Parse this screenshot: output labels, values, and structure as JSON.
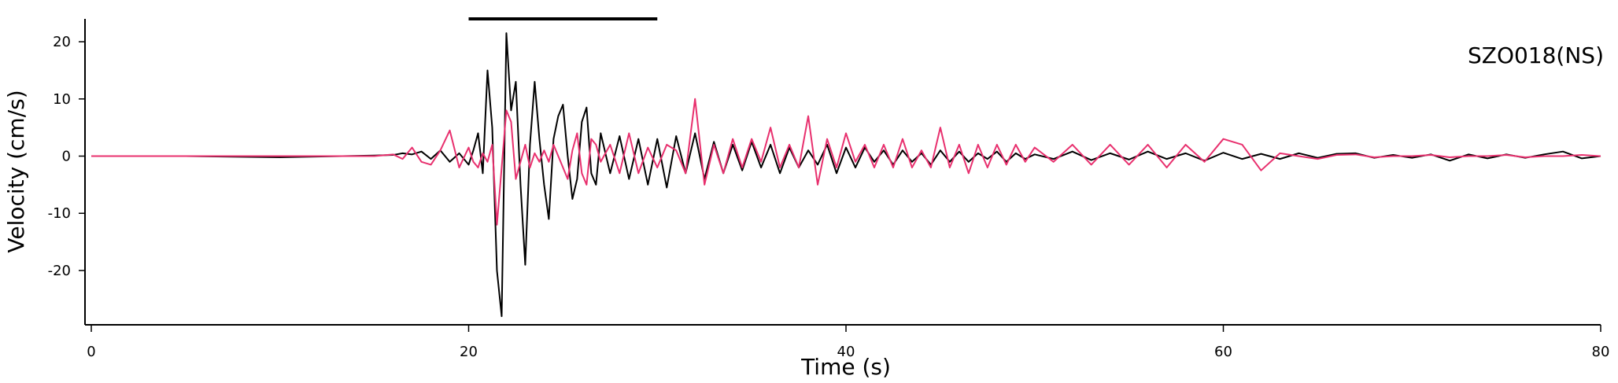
{
  "chart_data": {
    "type": "line",
    "xlabel": "Time (s)",
    "ylabel": "Velocity (cm/s)",
    "annotation": "SZO018(NS)",
    "highlight_window": [
      20,
      30
    ],
    "xlim": [
      0,
      80
    ],
    "xticks": [
      0,
      20,
      40,
      60,
      80
    ],
    "ylim": [
      -29.5,
      24
    ],
    "yticks": [
      -20,
      -10,
      0,
      10,
      20
    ],
    "x": [
      0,
      5,
      10,
      15,
      16,
      16.5,
      17,
      17.5,
      18,
      18.5,
      19,
      19.5,
      20,
      20.25,
      20.5,
      20.75,
      21,
      21.25,
      21.5,
      21.75,
      22,
      22.25,
      22.5,
      22.75,
      23,
      23.25,
      23.5,
      23.75,
      24,
      24.25,
      24.5,
      24.75,
      25,
      25.25,
      25.5,
      25.75,
      26,
      26.25,
      26.5,
      26.75,
      27,
      27.5,
      28,
      28.5,
      29,
      29.5,
      30,
      30.5,
      31,
      31.5,
      32,
      32.5,
      33,
      33.5,
      34,
      34.5,
      35,
      35.5,
      36,
      36.5,
      37,
      37.5,
      38,
      38.5,
      39,
      39.5,
      40,
      40.5,
      41,
      41.5,
      42,
      42.5,
      43,
      43.5,
      44,
      44.5,
      45,
      45.5,
      46,
      46.5,
      47,
      47.5,
      48,
      48.5,
      49,
      49.5,
      50,
      51,
      52,
      53,
      54,
      55,
      56,
      57,
      58,
      59,
      60,
      61,
      62,
      63,
      64,
      65,
      66,
      67,
      68,
      69,
      70,
      71,
      72,
      73,
      74,
      75,
      76,
      77,
      78,
      79,
      80
    ],
    "series": [
      {
        "color": "#000000",
        "values": [
          0,
          0,
          -0.2,
          0.1,
          0.2,
          0.5,
          0.3,
          0.8,
          -0.5,
          1,
          -1,
          0.5,
          -1.5,
          1,
          4,
          -3,
          15,
          5,
          -20,
          -28,
          21.5,
          8,
          13,
          -5,
          -19,
          2,
          13,
          3,
          -5,
          -11,
          3,
          7,
          9,
          0,
          -7.5,
          -4,
          6,
          8.5,
          -3,
          -5,
          4,
          -3,
          3.5,
          -4,
          3,
          -5,
          3,
          -5.5,
          3.5,
          -3,
          4,
          -4,
          2.5,
          -3,
          2,
          -2.5,
          2.5,
          -2,
          2,
          -3,
          1.5,
          -2,
          1,
          -1.5,
          2,
          -3,
          1.5,
          -2,
          1.5,
          -1,
          1,
          -1.5,
          1,
          -1,
          0.5,
          -1.5,
          1,
          -1,
          0.8,
          -1,
          0.5,
          -0.5,
          0.8,
          -1,
          0.5,
          -0.5,
          0.3,
          -0.5,
          0.8,
          -0.7,
          0.5,
          -0.6,
          0.8,
          -0.5,
          0.5,
          -0.8,
          0.6,
          -0.5,
          0.4,
          -0.5,
          0.5,
          -0.3,
          0.4,
          0.5,
          -0.3,
          0.2,
          -0.3,
          0.3,
          -0.8,
          0.3,
          -0.4,
          0.3,
          -0.3,
          0.3,
          0.8,
          -0.4,
          0
        ]
      },
      {
        "color": "#e8306e",
        "values": [
          0,
          0,
          0,
          0,
          0.3,
          -0.5,
          1.5,
          -1,
          -1.5,
          1,
          4.5,
          -2,
          1.5,
          -1,
          -2,
          0.5,
          -1,
          2,
          -12,
          -2,
          8,
          6,
          -4,
          -1,
          2,
          -2,
          0.5,
          -1,
          1,
          -1,
          2,
          0,
          -2,
          -4,
          1,
          4,
          -3,
          -5,
          3,
          2,
          -1,
          2,
          -3,
          4,
          -3,
          1.5,
          -2,
          2,
          1,
          -3,
          10,
          -5,
          2,
          -3,
          3,
          -2,
          3,
          -1,
          5,
          -2,
          2,
          -2,
          7,
          -5,
          3,
          -2,
          4,
          -1,
          2,
          -2,
          2,
          -2,
          3,
          -2,
          1,
          -2,
          5,
          -2,
          2,
          -3,
          2,
          -2,
          2,
          -1.5,
          2,
          -1,
          1.5,
          -1,
          2,
          -1.5,
          2,
          -1.5,
          2,
          -2,
          2,
          -1,
          3,
          2,
          -2.5,
          0.5,
          0,
          -0.5,
          0.2,
          0.3,
          -0.2,
          0,
          0,
          0.2,
          -0.2,
          0,
          0,
          0.2,
          -0.2,
          0,
          0,
          0.2,
          0
        ]
      }
    ]
  }
}
